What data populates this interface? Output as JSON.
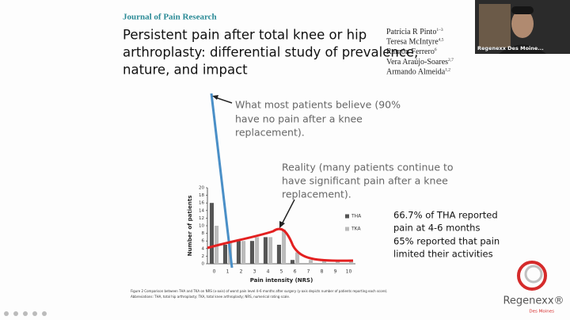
{
  "slide": {
    "journal": "Journal of Pain Research",
    "title_lines": [
      "Persistent pain after total knee or hip",
      "arthroplasty: differential study of prevalence,",
      "nature, and impact"
    ],
    "authors": [
      {
        "name": "Patrícia R Pinto",
        "sup": "1–3"
      },
      {
        "name": "Teresa McIntyre",
        "sup": "4,5"
      },
      {
        "name": "Ramón Ferrero",
        "sup": "6"
      },
      {
        "name": "Vera Araújo-Soares",
        "sup": "2,7"
      },
      {
        "name": "Armando Almeida",
        "sup": "1,2"
      }
    ],
    "belief_lines": [
      "What most patients believe (90%",
      "have no pain after a knee",
      "replacement)."
    ],
    "reality_lines": [
      "Reality (many patients continue to",
      "have significant pain after a knee",
      "replacement)."
    ],
    "stats_lines": [
      "66.7% of THA reported",
      "pain at 4-6 months",
      "65% reported that pain",
      "limited their activities"
    ],
    "caption_lines": [
      "Figure 2 Comparison between THA and TKA on NRS (x-axis) of worst pain level 4–6 months after surgery (y-axis depicts number of patients reporting each score).",
      "Abbreviations: THA, total hip arthroplasty; TKA, total knee arthroplasty; NRS, numerical rating scale."
    ]
  },
  "chart_data": {
    "type": "bar",
    "x_label": "Pain intensity (NRS)",
    "y_label": "Number of patients",
    "categories": [
      "0",
      "1",
      "2",
      "3",
      "4",
      "5",
      "6",
      "7",
      "8",
      "9",
      "10"
    ],
    "series": [
      {
        "name": "THA",
        "color": "#555555",
        "values": [
          16,
          5,
          6,
          6,
          7,
          5,
          1,
          0,
          0,
          0,
          0
        ]
      },
      {
        "name": "TKA",
        "color": "#bbbbbb",
        "values": [
          10,
          6,
          6,
          7,
          7,
          9,
          3,
          1,
          1,
          1,
          1
        ]
      }
    ],
    "ylim": [
      0,
      20
    ],
    "yticks": [
      0,
      2,
      4,
      6,
      8,
      10,
      12,
      14,
      16,
      18,
      20
    ]
  },
  "video": {
    "label": "Regenexx Des Moine..."
  },
  "logo": {
    "name": "Regenexx®",
    "sub": "Des Moines"
  }
}
